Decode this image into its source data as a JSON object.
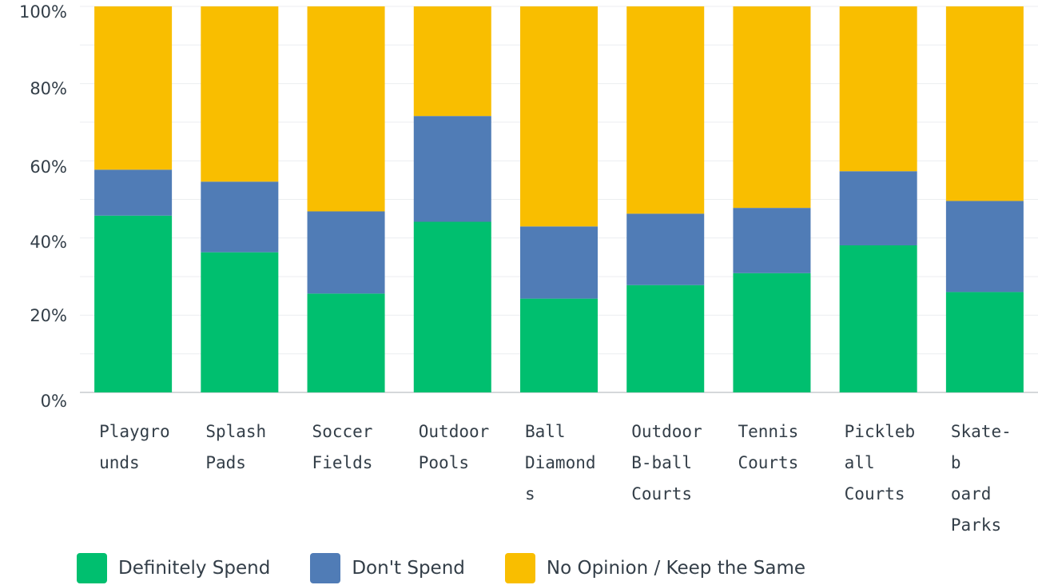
{
  "chart_data": {
    "type": "bar",
    "stacked": true,
    "categories": [
      [
        "Playgro",
        "unds"
      ],
      [
        "Splash",
        "Pads"
      ],
      [
        "Soccer",
        "Fields"
      ],
      [
        "Outdoor",
        "Pools"
      ],
      [
        "Ball",
        "Diamond",
        "s"
      ],
      [
        "Outdoor",
        "B-ball",
        "Courts"
      ],
      [
        "Tennis",
        "Courts"
      ],
      [
        "Pickleb",
        "all",
        "Courts"
      ],
      [
        "Skate-",
        "b",
        "oard",
        "Parks"
      ]
    ],
    "series": [
      {
        "name": "Definitely Spend",
        "color": "#00bf6f",
        "values": [
          45.8,
          36.3,
          25.6,
          44.2,
          24.3,
          27.8,
          30.9,
          38.1,
          26.0
        ]
      },
      {
        "name": "Don't Spend",
        "color": "#507cb6",
        "values": [
          11.9,
          18.3,
          21.3,
          27.4,
          18.7,
          18.5,
          16.9,
          19.2,
          23.6
        ]
      },
      {
        "name": "No Opinion / Keep the Same",
        "color": "#f9be00",
        "values": [
          42.3,
          45.4,
          53.1,
          28.4,
          57.0,
          53.7,
          52.2,
          42.7,
          50.4
        ]
      }
    ],
    "yticks": [
      "0%",
      "20%",
      "40%",
      "60%",
      "80%",
      "100%"
    ],
    "ylim": [
      0,
      100
    ],
    "grid": true,
    "legend_position": "bottom"
  }
}
